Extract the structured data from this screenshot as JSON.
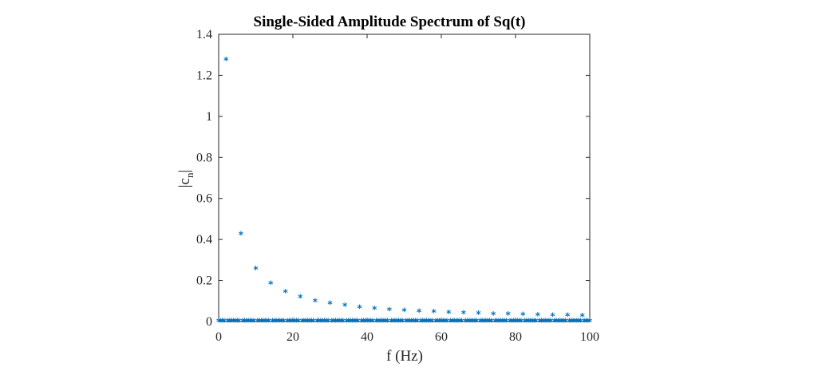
{
  "chart_data": {
    "type": "scatter",
    "title": "Single-Sided Amplitude Spectrum of Sq(t)",
    "xlabel": "f (Hz)",
    "ylabel": {
      "base": "|c",
      "subscript": "n",
      "suffix": "|"
    },
    "xlim": [
      0,
      100
    ],
    "ylim": [
      0,
      1.4
    ],
    "xticks": [
      0,
      20,
      40,
      60,
      80,
      100
    ],
    "xtick_labels": [
      "0",
      "20",
      "40",
      "60",
      "80",
      "100"
    ],
    "yticks": [
      0,
      0.2,
      0.4,
      0.6,
      0.8,
      1,
      1.2,
      1.4
    ],
    "ytick_labels": [
      "0",
      "0.2",
      "0.4",
      "0.6",
      "0.8",
      "1",
      "1.2",
      "1.4"
    ],
    "grid": false,
    "marker": "*",
    "color": "#0072BD",
    "series": [
      {
        "x_start": 0,
        "x_step": 0.5,
        "x_end": 100,
        "harmonic_x": [
          2,
          6,
          10,
          14,
          18,
          22,
          26,
          30,
          34,
          38,
          42,
          46,
          50,
          54,
          58,
          62,
          66,
          70,
          74,
          78,
          82,
          86,
          90,
          94,
          98
        ],
        "harmonic_y": [
          1.273,
          0.424,
          0.255,
          0.182,
          0.141,
          0.116,
          0.098,
          0.085,
          0.075,
          0.067,
          0.061,
          0.055,
          0.051,
          0.047,
          0.044,
          0.041,
          0.039,
          0.036,
          0.034,
          0.033,
          0.031,
          0.03,
          0.028,
          0.027,
          0.026
        ],
        "baseline_y": 0
      }
    ]
  }
}
